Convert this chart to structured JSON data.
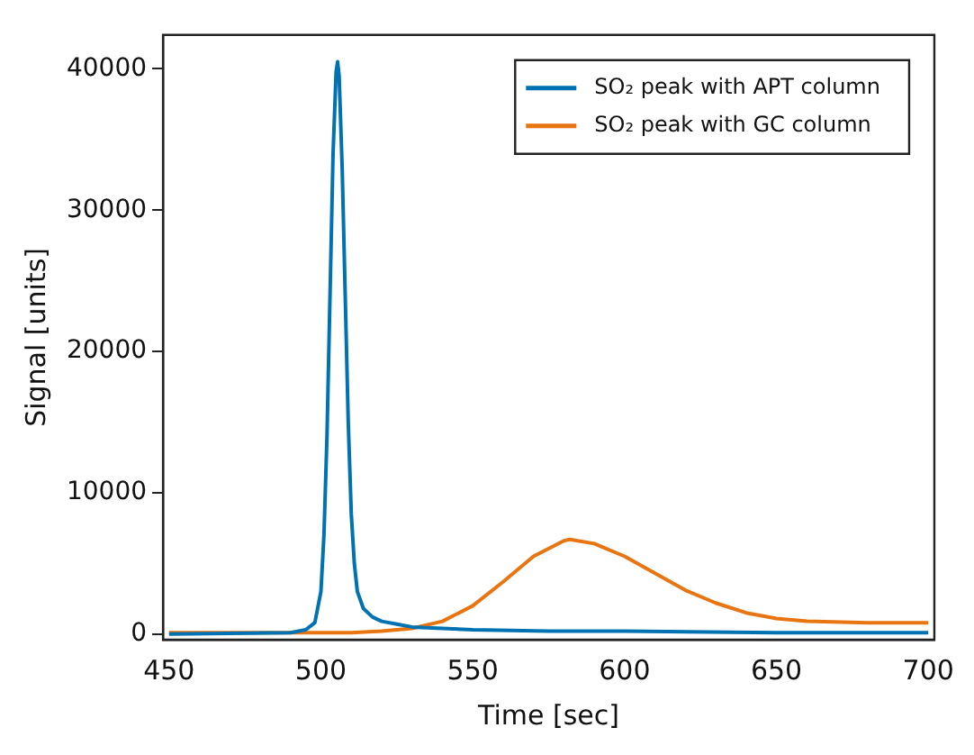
{
  "chart_data": {
    "type": "line",
    "xlabel": "Time [sec]",
    "ylabel": "Signal [units]",
    "xlim": [
      448,
      702
    ],
    "xticks": [
      450,
      500,
      550,
      600,
      650,
      700
    ],
    "ylim": [
      -400,
      42400
    ],
    "yticks": [
      0,
      10000,
      20000,
      30000,
      40000
    ],
    "legend": "top right",
    "marker": "none",
    "line_style": "solid",
    "series": [
      {
        "name": "SO₂ peak with APT column",
        "color": "#0072b2",
        "x": [
          450,
          490,
          495,
          498,
          500,
          501,
          502,
          503,
          504,
          505,
          505.5,
          506,
          507,
          508,
          509,
          510,
          511,
          512,
          514,
          517,
          520,
          525,
          530,
          540,
          550,
          575,
          600,
          650,
          700
        ],
        "values": [
          0,
          100,
          300,
          800,
          3000,
          7000,
          14000,
          24000,
          34000,
          39800,
          40500,
          39500,
          33000,
          24000,
          15000,
          8500,
          5000,
          3000,
          1800,
          1200,
          900,
          700,
          500,
          400,
          300,
          200,
          200,
          100,
          100
        ]
      },
      {
        "name": "SO₂ peak with GC column",
        "color": "#e87511",
        "x": [
          450,
          480,
          500,
          510,
          520,
          530,
          540,
          550,
          560,
          570,
          580,
          582,
          590,
          600,
          610,
          620,
          630,
          640,
          650,
          660,
          680,
          700
        ],
        "values": [
          100,
          100,
          100,
          100,
          200,
          400,
          900,
          2000,
          3700,
          5500,
          6600,
          6700,
          6400,
          5500,
          4300,
          3100,
          2200,
          1500,
          1100,
          900,
          800,
          800
        ]
      }
    ]
  }
}
